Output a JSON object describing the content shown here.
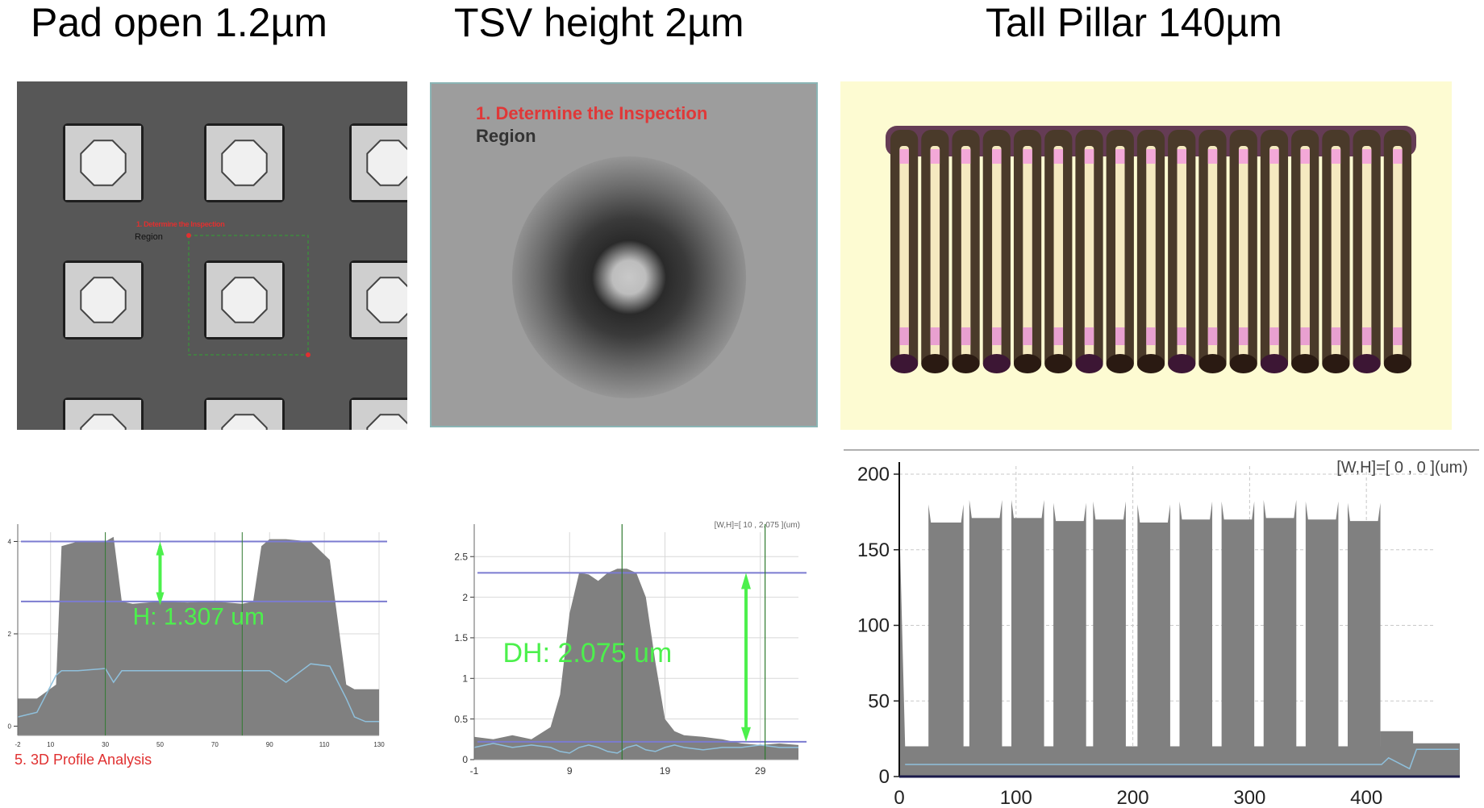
{
  "titles": [
    "Pad open 1.2µm",
    "TSV height 2µm",
    "Tall Pillar 140µm"
  ],
  "images": {
    "pad": {
      "annotation_line1": "1. Determine the Inspection",
      "annotation_line2": "Region"
    },
    "tsv": {
      "annotation_line1": "1. Determine the Inspection",
      "annotation_line2": "Region"
    },
    "pillar": {
      "pillar_count": 17
    }
  },
  "colors": {
    "profile_fill": "#808080",
    "reference_line": "#7b7bd0",
    "measure_arrow": "#4cf04c",
    "cursor_line": "#2f7a2f",
    "secondary_trace": "#8fc0dc",
    "annotation_red": "#e03030",
    "pillar_bg": "#fdfbd2"
  },
  "chart_data": [
    {
      "type": "area",
      "title": "Pad open 1.2µm",
      "annotation": "H: 1.307 um",
      "footer": "5. 3D Profile Analysis",
      "xlim": [
        -2,
        130
      ],
      "ylim": [
        -0.2,
        4.2
      ],
      "xticks": [
        "-2",
        "10",
        "30",
        "50",
        "70",
        "90",
        "110",
        "130"
      ],
      "yticks": [
        "0",
        "2",
        "4"
      ],
      "reference_lines": [
        4.0,
        2.7
      ],
      "measured_height_um": 1.307,
      "x": [
        -2,
        5,
        12,
        14,
        20,
        30,
        33,
        36,
        40,
        50,
        60,
        70,
        80,
        84,
        87,
        90,
        96,
        105,
        112,
        118,
        121,
        125,
        130
      ],
      "y": [
        0.6,
        0.6,
        0.9,
        3.9,
        4.0,
        4.0,
        4.1,
        2.7,
        2.65,
        2.7,
        2.68,
        2.7,
        2.65,
        2.7,
        3.9,
        4.05,
        4.05,
        4.0,
        3.6,
        0.9,
        0.8,
        0.8,
        0.8
      ],
      "secondary_y": [
        0.2,
        0.3,
        1.1,
        1.2,
        1.2,
        1.25,
        0.95,
        1.2,
        1.2,
        1.2,
        1.2,
        1.2,
        1.2,
        1.2,
        1.2,
        1.2,
        0.95,
        1.35,
        1.3,
        0.6,
        0.2,
        0.1,
        0.1
      ]
    },
    {
      "type": "area",
      "title": "TSV height 2µm",
      "annotation": "DH: 2.075 um",
      "header": "[W,H]=[ 10 , 2.075 ](um)",
      "xlim": [
        -1,
        33
      ],
      "ylim": [
        0,
        2.8
      ],
      "xticks": [
        "-1",
        "9",
        "19",
        "29"
      ],
      "yticks": [
        "0",
        "0.5",
        "1",
        "1.5",
        "2",
        "2.5"
      ],
      "reference_lines": [
        2.3,
        0.22
      ],
      "measured_height_um": 2.075,
      "x": [
        -1,
        1,
        3,
        5,
        7,
        8,
        9,
        10,
        11,
        12,
        13,
        14,
        15,
        16,
        17,
        18,
        19,
        20,
        21,
        23,
        25,
        27,
        29,
        31,
        33
      ],
      "y": [
        0.28,
        0.25,
        0.3,
        0.25,
        0.4,
        0.8,
        1.8,
        2.3,
        2.28,
        2.2,
        2.3,
        2.35,
        2.35,
        2.3,
        2.0,
        1.2,
        0.5,
        0.35,
        0.3,
        0.28,
        0.25,
        0.2,
        0.18,
        0.2,
        0.18
      ],
      "secondary_y": [
        0.15,
        0.2,
        0.15,
        0.18,
        0.15,
        0.1,
        0.08,
        0.15,
        0.18,
        0.15,
        0.1,
        0.08,
        0.15,
        0.18,
        0.12,
        0.1,
        0.15,
        0.18,
        0.15,
        0.12,
        0.15,
        0.15,
        0.18,
        0.15,
        0.15
      ]
    },
    {
      "type": "area",
      "title": "Tall Pillar 140µm",
      "header": "[W,H]=[ 0 , 0 ](um)",
      "xlim": [
        0,
        480
      ],
      "ylim": [
        0,
        200
      ],
      "xticks": [
        "0",
        "100",
        "200",
        "300",
        "400"
      ],
      "yticks": [
        "0",
        "50",
        "100",
        "150",
        "200"
      ],
      "pillars": [
        {
          "x_start": 25,
          "x_end": 55,
          "top": 168
        },
        {
          "x_start": 60,
          "x_end": 88,
          "top": 171
        },
        {
          "x_start": 96,
          "x_end": 124,
          "top": 171
        },
        {
          "x_start": 132,
          "x_end": 160,
          "top": 169
        },
        {
          "x_start": 166,
          "x_end": 194,
          "top": 170
        },
        {
          "x_start": 204,
          "x_end": 232,
          "top": 168
        },
        {
          "x_start": 240,
          "x_end": 268,
          "top": 170
        },
        {
          "x_start": 276,
          "x_end": 304,
          "top": 170
        },
        {
          "x_start": 312,
          "x_end": 340,
          "top": 171
        },
        {
          "x_start": 348,
          "x_end": 376,
          "top": 170
        },
        {
          "x_start": 384,
          "x_end": 412,
          "top": 169
        }
      ],
      "baseline_level": 20,
      "step_region": {
        "x_start": 412,
        "x_end": 440,
        "level": 30
      },
      "tail_level": 22,
      "secondary_level": 8
    }
  ]
}
